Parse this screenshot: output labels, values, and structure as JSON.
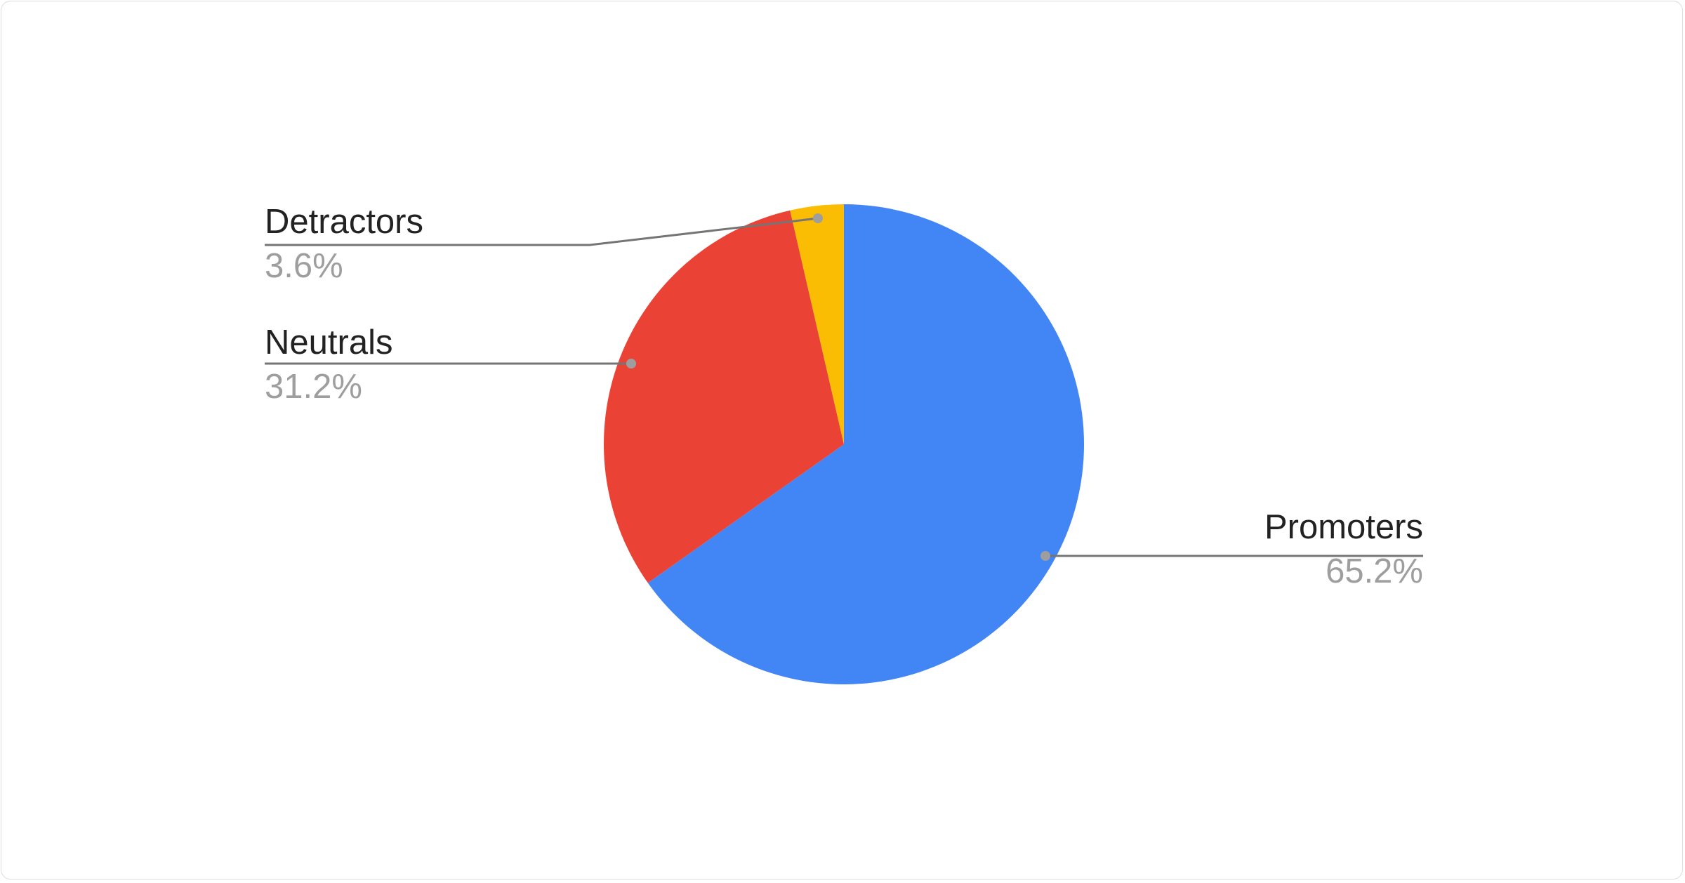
{
  "chart_data": {
    "type": "pie",
    "title": "",
    "start_angle": "top, clockwise",
    "slices": [
      {
        "label": "Promoters",
        "value": 65.2,
        "value_label": "65.2%",
        "color": "#4285f4"
      },
      {
        "label": "Neutrals",
        "value": 31.2,
        "value_label": "31.2%",
        "color": "#ea4335"
      },
      {
        "label": "Detractors",
        "value": 3.6,
        "value_label": "3.6%",
        "color": "#fbbc04"
      }
    ],
    "labels_style": "callout lines with name and percentage",
    "leader_color": "#757575",
    "legend": "none"
  }
}
